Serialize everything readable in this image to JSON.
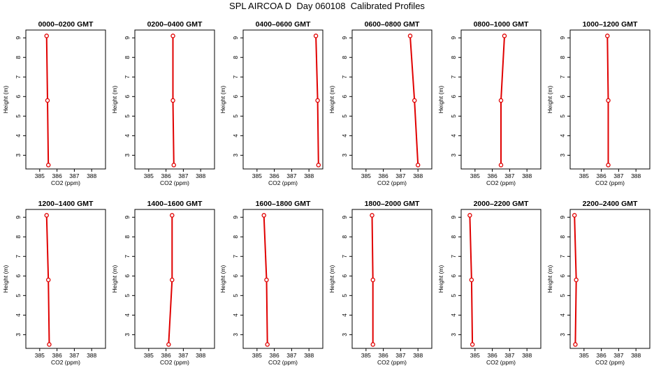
{
  "suptitle": "SPL AIRCOA D  Day 060108  Calibrated Profiles",
  "colors": {
    "line": "#e00000",
    "marker": "#e00000",
    "axis": "#000000"
  },
  "chart_data": [
    {
      "type": "line",
      "title": "0000–0200 GMT",
      "xlabel": "CO2 (ppm)",
      "ylabel": "Height (m)",
      "xlim": [
        384.2,
        388.8
      ],
      "ylim": [
        2.3,
        9.4
      ],
      "xticks": [
        385,
        386,
        387,
        388
      ],
      "yticks": [
        3,
        4,
        5,
        6,
        7,
        8,
        9
      ],
      "series": [
        {
          "x": [
            385.5,
            385.45,
            385.4
          ],
          "y": [
            2.5,
            5.8,
            9.1
          ]
        }
      ]
    },
    {
      "type": "line",
      "title": "0200–0400 GMT",
      "xlabel": "CO2 (ppm)",
      "ylabel": "Height (m)",
      "xlim": [
        384.2,
        388.8
      ],
      "ylim": [
        2.3,
        9.4
      ],
      "xticks": [
        385,
        386,
        387,
        388
      ],
      "yticks": [
        3,
        4,
        5,
        6,
        7,
        8,
        9
      ],
      "series": [
        {
          "x": [
            386.45,
            386.4,
            386.4
          ],
          "y": [
            2.5,
            5.8,
            9.1
          ]
        }
      ]
    },
    {
      "type": "line",
      "title": "0400–0600 GMT",
      "xlabel": "CO2 (ppm)",
      "ylabel": "Height (m)",
      "xlim": [
        384.2,
        388.8
      ],
      "ylim": [
        2.3,
        9.4
      ],
      "xticks": [
        385,
        386,
        387,
        388
      ],
      "yticks": [
        3,
        4,
        5,
        6,
        7,
        8,
        9
      ],
      "series": [
        {
          "x": [
            388.55,
            388.5,
            388.4
          ],
          "y": [
            2.5,
            5.8,
            9.1
          ]
        }
      ]
    },
    {
      "type": "line",
      "title": "0600–0800 GMT",
      "xlabel": "CO2 (ppm)",
      "ylabel": "Height (m)",
      "xlim": [
        384.2,
        388.8
      ],
      "ylim": [
        2.3,
        9.4
      ],
      "xticks": [
        385,
        386,
        387,
        388
      ],
      "yticks": [
        3,
        4,
        5,
        6,
        7,
        8,
        9
      ],
      "series": [
        {
          "x": [
            388.0,
            387.8,
            387.55
          ],
          "y": [
            2.5,
            5.8,
            9.1
          ]
        }
      ]
    },
    {
      "type": "line",
      "title": "0800–1000 GMT",
      "xlabel": "CO2 (ppm)",
      "ylabel": "Height (m)",
      "xlim": [
        384.2,
        388.8
      ],
      "ylim": [
        2.3,
        9.4
      ],
      "xticks": [
        385,
        386,
        387,
        388
      ],
      "yticks": [
        3,
        4,
        5,
        6,
        7,
        8,
        9
      ],
      "series": [
        {
          "x": [
            386.5,
            386.5,
            386.7
          ],
          "y": [
            2.5,
            5.8,
            9.1
          ]
        }
      ]
    },
    {
      "type": "line",
      "title": "1000–1200 GMT",
      "xlabel": "CO2 (ppm)",
      "ylabel": "Height (m)",
      "xlim": [
        384.2,
        388.8
      ],
      "ylim": [
        2.3,
        9.4
      ],
      "xticks": [
        385,
        386,
        387,
        388
      ],
      "yticks": [
        3,
        4,
        5,
        6,
        7,
        8,
        9
      ],
      "series": [
        {
          "x": [
            386.4,
            386.4,
            386.35
          ],
          "y": [
            2.5,
            5.8,
            9.1
          ]
        }
      ]
    },
    {
      "type": "line",
      "title": "1200–1400 GMT",
      "xlabel": "CO2 (ppm)",
      "ylabel": "Height (m)",
      "xlim": [
        384.2,
        388.8
      ],
      "ylim": [
        2.3,
        9.4
      ],
      "xticks": [
        385,
        386,
        387,
        388
      ],
      "yticks": [
        3,
        4,
        5,
        6,
        7,
        8,
        9
      ],
      "series": [
        {
          "x": [
            385.55,
            385.5,
            385.4
          ],
          "y": [
            2.5,
            5.8,
            9.1
          ]
        }
      ]
    },
    {
      "type": "line",
      "title": "1400–1600 GMT",
      "xlabel": "CO2 (ppm)",
      "ylabel": "Height (m)",
      "xlim": [
        384.2,
        388.8
      ],
      "ylim": [
        2.3,
        9.4
      ],
      "xticks": [
        385,
        386,
        387,
        388
      ],
      "yticks": [
        3,
        4,
        5,
        6,
        7,
        8,
        9
      ],
      "series": [
        {
          "x": [
            386.15,
            386.35,
            386.35
          ],
          "y": [
            2.5,
            5.8,
            9.1
          ]
        }
      ]
    },
    {
      "type": "line",
      "title": "1600–1800 GMT",
      "xlabel": "CO2 (ppm)",
      "ylabel": "Height (m)",
      "xlim": [
        384.2,
        388.8
      ],
      "ylim": [
        2.3,
        9.4
      ],
      "xticks": [
        385,
        386,
        387,
        388
      ],
      "yticks": [
        3,
        4,
        5,
        6,
        7,
        8,
        9
      ],
      "series": [
        {
          "x": [
            385.6,
            385.55,
            385.4
          ],
          "y": [
            2.5,
            5.8,
            9.1
          ]
        }
      ]
    },
    {
      "type": "line",
      "title": "1800–2000 GMT",
      "xlabel": "CO2 (ppm)",
      "ylabel": "Height (m)",
      "xlim": [
        384.2,
        388.8
      ],
      "ylim": [
        2.3,
        9.4
      ],
      "xticks": [
        385,
        386,
        387,
        388
      ],
      "yticks": [
        3,
        4,
        5,
        6,
        7,
        8,
        9
      ],
      "series": [
        {
          "x": [
            385.4,
            385.4,
            385.35
          ],
          "y": [
            2.5,
            5.8,
            9.1
          ]
        }
      ]
    },
    {
      "type": "line",
      "title": "2000–2200 GMT",
      "xlabel": "CO2 (ppm)",
      "ylabel": "Height (m)",
      "xlim": [
        384.2,
        388.8
      ],
      "ylim": [
        2.3,
        9.4
      ],
      "xticks": [
        385,
        386,
        387,
        388
      ],
      "yticks": [
        3,
        4,
        5,
        6,
        7,
        8,
        9
      ],
      "series": [
        {
          "x": [
            384.85,
            384.8,
            384.7
          ],
          "y": [
            2.5,
            5.8,
            9.1
          ]
        }
      ]
    },
    {
      "type": "line",
      "title": "2200–2400 GMT",
      "xlabel": "CO2 (ppm)",
      "ylabel": "Height (m)",
      "xlim": [
        384.2,
        388.8
      ],
      "ylim": [
        2.3,
        9.4
      ],
      "xticks": [
        385,
        386,
        387,
        388
      ],
      "yticks": [
        3,
        4,
        5,
        6,
        7,
        8,
        9
      ],
      "series": [
        {
          "x": [
            384.5,
            384.55,
            384.45
          ],
          "y": [
            2.5,
            5.8,
            9.1
          ]
        }
      ]
    }
  ]
}
